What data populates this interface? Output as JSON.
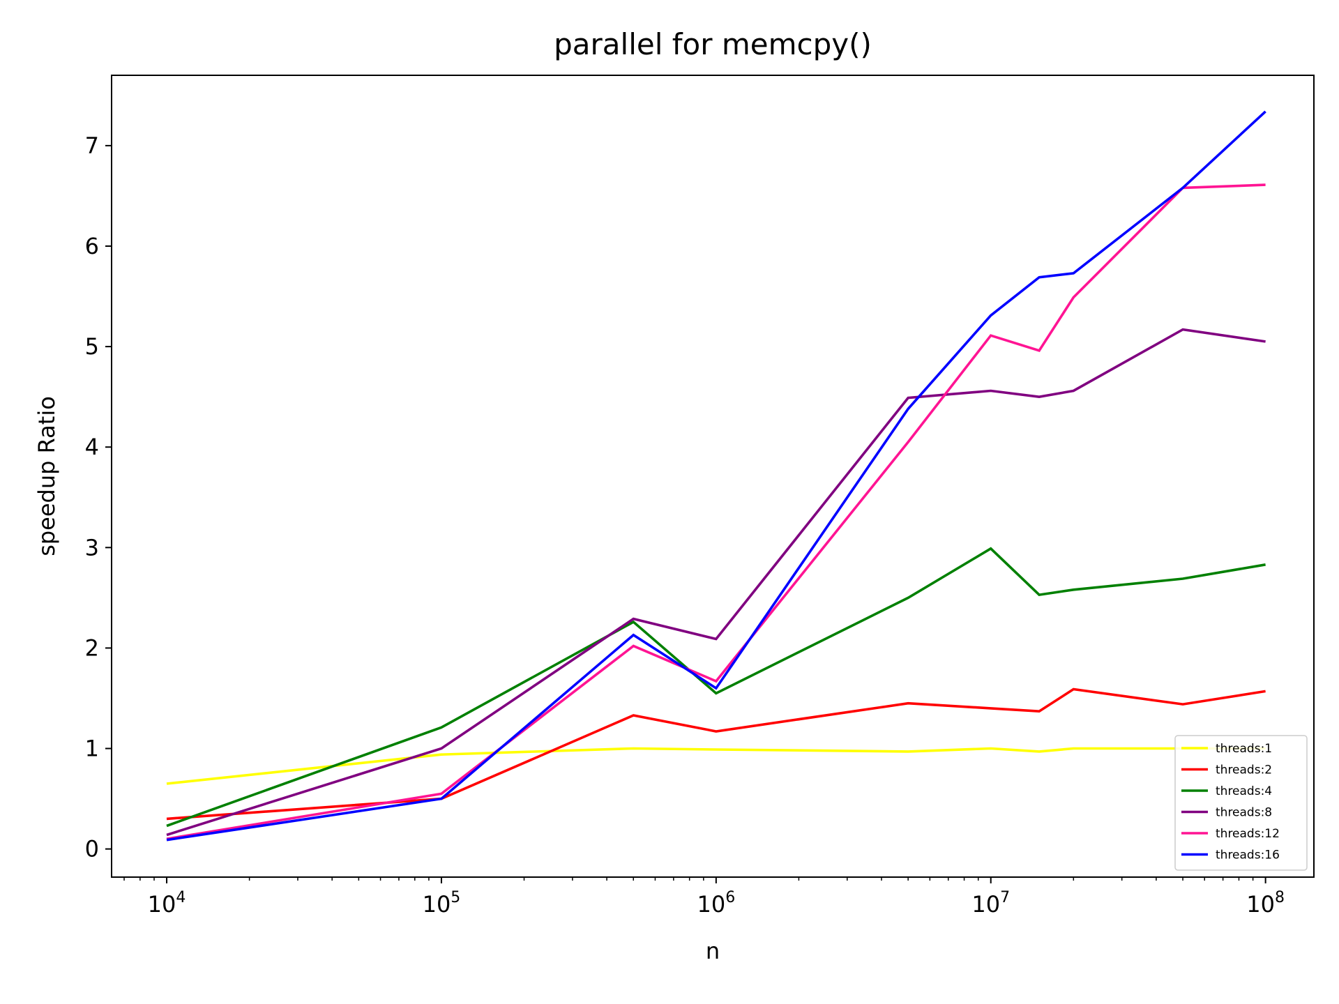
{
  "chart_data": {
    "type": "line",
    "title": "parallel for memcpy()",
    "xlabel": "n",
    "ylabel": "speedup Ratio",
    "xscale": "log",
    "xlim": [
      6300,
      150000000
    ],
    "ylim": [
      -0.28,
      7.7
    ],
    "x_ticks": [
      {
        "value": 10000,
        "base": "10",
        "exp": "4"
      },
      {
        "value": 100000,
        "base": "10",
        "exp": "5"
      },
      {
        "value": 1000000,
        "base": "10",
        "exp": "6"
      },
      {
        "value": 10000000,
        "base": "10",
        "exp": "7"
      },
      {
        "value": 100000000,
        "base": "10",
        "exp": "8"
      }
    ],
    "y_ticks": [
      0,
      1,
      2,
      3,
      4,
      5,
      6,
      7
    ],
    "grid": false,
    "legend": "lower-right",
    "x": [
      10000,
      100000,
      500000,
      1000000,
      5000000,
      10000000,
      15000000,
      20000000,
      50000000,
      100000000
    ],
    "series": [
      {
        "name": "threads:1",
        "color": "#ffff00",
        "values": [
          0.65,
          0.94,
          1.0,
          0.99,
          0.97,
          1.0,
          0.97,
          1.0,
          1.0,
          1.0
        ]
      },
      {
        "name": "threads:2",
        "color": "#ff0000",
        "values": [
          0.3,
          0.5,
          1.33,
          1.17,
          1.45,
          1.4,
          1.37,
          1.59,
          1.44,
          1.57
        ]
      },
      {
        "name": "threads:4",
        "color": "#008000",
        "values": [
          0.23,
          1.21,
          2.26,
          1.55,
          2.5,
          2.99,
          2.53,
          2.58,
          2.69,
          2.83
        ]
      },
      {
        "name": "threads:8",
        "color": "#800080",
        "values": [
          0.14,
          1.0,
          2.29,
          2.09,
          4.49,
          4.56,
          4.5,
          4.56,
          5.17,
          5.05
        ]
      },
      {
        "name": "threads:12",
        "color": "#ff1493",
        "values": [
          0.1,
          0.55,
          2.02,
          1.67,
          4.05,
          5.11,
          4.96,
          5.49,
          6.58,
          6.61
        ]
      },
      {
        "name": "threads:16",
        "color": "#0000ff",
        "values": [
          0.09,
          0.5,
          2.13,
          1.6,
          4.38,
          5.31,
          5.69,
          5.73,
          6.58,
          7.34
        ]
      }
    ]
  }
}
